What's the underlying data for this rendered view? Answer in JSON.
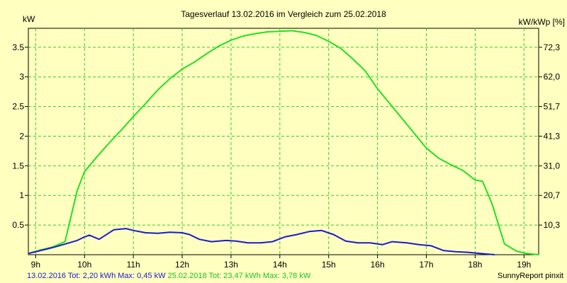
{
  "chart_data": {
    "type": "line",
    "title": "Tagesverlauf 13.02.2016 im Vergleich zum 25.02.2018",
    "ylabel_left": "kW",
    "ylabel_right": "kW/kWp [%]",
    "xlim": [
      8.85,
      19.3
    ],
    "ylim": [
      0,
      3.82
    ],
    "x_ticks": [
      {
        "value": 9,
        "label": "9h"
      },
      {
        "value": 10,
        "label": "10h"
      },
      {
        "value": 11,
        "label": "11h"
      },
      {
        "value": 12,
        "label": "12h"
      },
      {
        "value": 13,
        "label": "13h"
      },
      {
        "value": 14,
        "label": "14h"
      },
      {
        "value": 15,
        "label": "15h"
      },
      {
        "value": 16,
        "label": "16h"
      },
      {
        "value": 17,
        "label": "17h"
      },
      {
        "value": 18,
        "label": "18h"
      },
      {
        "value": 19,
        "label": "19h"
      }
    ],
    "y_ticks_left": [
      {
        "value": 0.5,
        "label": "0.5"
      },
      {
        "value": 1,
        "label": "1"
      },
      {
        "value": 1.5,
        "label": "1.5"
      },
      {
        "value": 2,
        "label": "2"
      },
      {
        "value": 2.5,
        "label": "2.5"
      },
      {
        "value": 3,
        "label": "3"
      },
      {
        "value": 3.5,
        "label": "3.5"
      }
    ],
    "y_ticks_right": [
      {
        "value": 0.5,
        "label": "10,3"
      },
      {
        "value": 1,
        "label": "20,7"
      },
      {
        "value": 1.5,
        "label": "31,0"
      },
      {
        "value": 2,
        "label": "41,3"
      },
      {
        "value": 2.5,
        "label": "51,7"
      },
      {
        "value": 3,
        "label": "62,0"
      },
      {
        "value": 3.5,
        "label": "72,3"
      }
    ],
    "grid": true,
    "series": [
      {
        "name": "25.02.2018",
        "color": "#22e022",
        "x": [
          8.85,
          9.1,
          9.35,
          9.6,
          9.85,
          10.0,
          10.25,
          10.5,
          10.75,
          11.0,
          11.25,
          11.5,
          11.75,
          12.0,
          12.25,
          12.5,
          12.75,
          13.0,
          13.25,
          13.5,
          13.75,
          14.0,
          14.25,
          14.5,
          14.75,
          15.0,
          15.25,
          15.5,
          15.75,
          16.0,
          16.25,
          16.5,
          16.75,
          17.0,
          17.25,
          17.5,
          17.75,
          18.0,
          18.15,
          18.35,
          18.6,
          18.85,
          19.05,
          19.3
        ],
        "y": [
          0.02,
          0.08,
          0.13,
          0.22,
          1.08,
          1.4,
          1.65,
          1.88,
          2.1,
          2.33,
          2.55,
          2.78,
          2.97,
          3.13,
          3.25,
          3.39,
          3.52,
          3.62,
          3.69,
          3.73,
          3.76,
          3.77,
          3.78,
          3.75,
          3.7,
          3.6,
          3.48,
          3.3,
          3.1,
          2.8,
          2.55,
          2.3,
          2.05,
          1.8,
          1.63,
          1.52,
          1.42,
          1.26,
          1.24,
          0.85,
          0.18,
          0.06,
          0.02,
          0.0
        ]
      },
      {
        "name": "13.02.2016",
        "color": "#1a1ad0",
        "x": [
          8.85,
          9.1,
          9.35,
          9.6,
          9.85,
          10.0,
          10.1,
          10.3,
          10.6,
          10.85,
          11.0,
          11.25,
          11.5,
          11.75,
          12.0,
          12.15,
          12.35,
          12.6,
          12.9,
          13.1,
          13.35,
          13.6,
          13.85,
          14.1,
          14.35,
          14.6,
          14.85,
          15.1,
          15.35,
          15.6,
          15.85,
          16.1,
          16.3,
          16.6,
          16.85,
          17.1,
          17.35,
          17.6,
          17.85,
          18.1,
          18.4
        ],
        "y": [
          0.02,
          0.07,
          0.12,
          0.18,
          0.24,
          0.3,
          0.33,
          0.26,
          0.42,
          0.44,
          0.41,
          0.37,
          0.36,
          0.38,
          0.37,
          0.34,
          0.26,
          0.22,
          0.24,
          0.23,
          0.2,
          0.2,
          0.22,
          0.3,
          0.34,
          0.39,
          0.41,
          0.34,
          0.23,
          0.2,
          0.2,
          0.17,
          0.22,
          0.2,
          0.17,
          0.15,
          0.07,
          0.05,
          0.04,
          0.02,
          0.0
        ]
      }
    ]
  },
  "footer": {
    "s1_date": "13.02.2016",
    "s1_tot_label": "Tot:",
    "s1_tot_value": "2,20 kWh",
    "s1_max_label": "Max:",
    "s1_max_value": "0,45 kW",
    "s2_date": "25.02.2018",
    "s2_tot_label": "Tot:",
    "s2_tot_value": "23,47 kWh",
    "s2_max_label": "Max:",
    "s2_max_value": "3,78 kW",
    "credit": "SunnyReport pinxit",
    "s1_color": "#1a1ad0",
    "s2_color": "#22e022"
  }
}
